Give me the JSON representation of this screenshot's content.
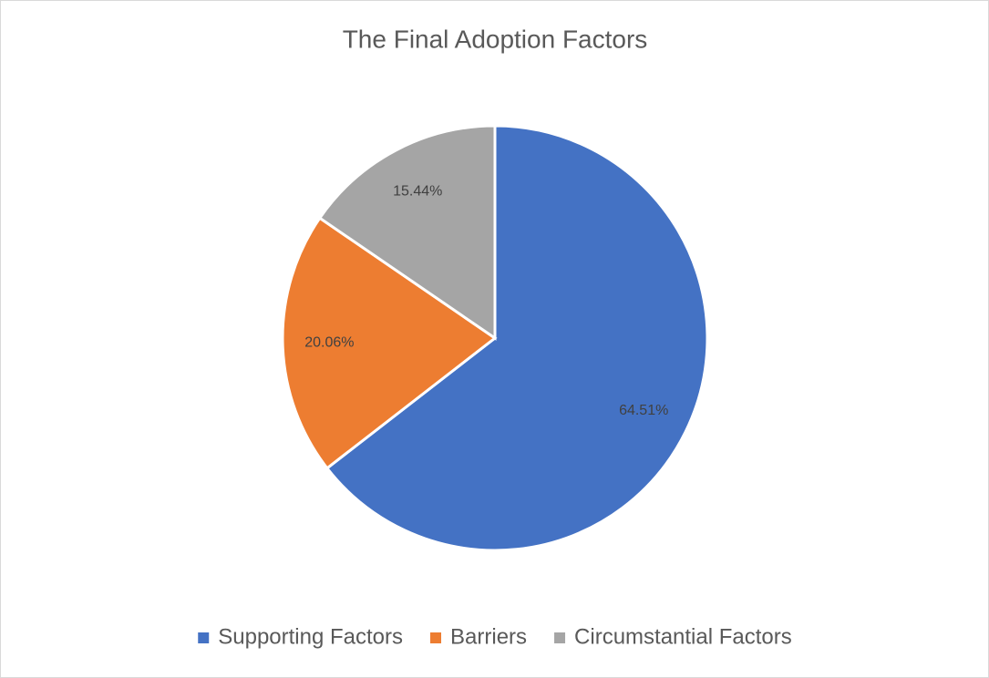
{
  "chart_data": {
    "type": "pie",
    "title": "The Final Adoption Factors",
    "categories": [
      "Supporting Factors",
      "Barriers",
      "Circumstantial Factors"
    ],
    "values": [
      64.51,
      20.06,
      15.44
    ],
    "value_labels": [
      "64.51%",
      "20.06%",
      "15.44%"
    ],
    "colors": [
      "#4472c4",
      "#ed7d31",
      "#a5a5a5"
    ],
    "legend": "bottom"
  }
}
